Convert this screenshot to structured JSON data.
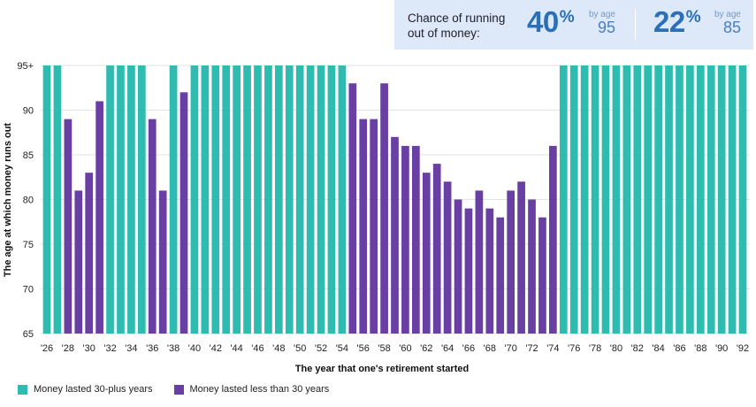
{
  "callout": {
    "label": "Chance of running out of money:",
    "stats": [
      {
        "value": "40",
        "unit": "%",
        "by": "by age",
        "age": "95"
      },
      {
        "value": "22",
        "unit": "%",
        "by": "by age",
        "age": "85"
      }
    ]
  },
  "legend": {
    "items": [
      {
        "label": "Money lasted 30-plus years",
        "color": "#2ebcb0"
      },
      {
        "label": "Money lasted less than 30 years",
        "color": "#6a3fa3"
      }
    ]
  },
  "chart_data": {
    "type": "bar",
    "ylabel": "The age at which money runs out",
    "xlabel": "The year that one's retirement started",
    "ylim": [
      65,
      95
    ],
    "yticks": [
      "65",
      "70",
      "75",
      "80",
      "85",
      "90",
      "95+"
    ],
    "colors": {
      "lasted": "#2ebcb0",
      "ran_out": "#6a3fa3"
    },
    "categories": [
      "1926",
      "1927",
      "1928",
      "1929",
      "1930",
      "1931",
      "1932",
      "1933",
      "1934",
      "1935",
      "1936",
      "1937",
      "1938",
      "1939",
      "1940",
      "1941",
      "1942",
      "1943",
      "1944",
      "1945",
      "1946",
      "1947",
      "1948",
      "1949",
      "1950",
      "1951",
      "1952",
      "1953",
      "1954",
      "1955",
      "1956",
      "1957",
      "1958",
      "1959",
      "1960",
      "1961",
      "1962",
      "1963",
      "1964",
      "1965",
      "1966",
      "1967",
      "1968",
      "1969",
      "1970",
      "1971",
      "1972",
      "1973",
      "1974",
      "1975",
      "1976",
      "1977",
      "1978",
      "1979",
      "1980",
      "1981",
      "1982",
      "1983",
      "1984",
      "1985",
      "1986",
      "1987",
      "1988",
      "1989",
      "1990",
      "1991",
      "1992"
    ],
    "tick_labels": [
      "'26",
      "'28",
      "'30",
      "'32",
      "'34",
      "'36",
      "'38",
      "'40",
      "'42",
      "'44",
      "'46",
      "'48",
      "'50",
      "'52",
      "'54",
      "'56",
      "'58",
      "'60",
      "'62",
      "'64",
      "'66",
      "'68",
      "'70",
      "'72",
      "'74",
      "'76",
      "'78",
      "'80",
      "'82",
      "'84",
      "'86",
      "'88",
      "'90",
      "'92"
    ],
    "values": [
      95,
      95,
      89,
      81,
      83,
      91,
      95,
      95,
      95,
      95,
      89,
      81,
      95,
      92,
      95,
      95,
      95,
      95,
      95,
      95,
      95,
      95,
      95,
      95,
      95,
      95,
      95,
      95,
      95,
      93,
      89,
      89,
      93,
      87,
      86,
      86,
      83,
      84,
      82,
      80,
      79,
      81,
      79,
      78,
      81,
      82,
      80,
      78,
      86,
      95,
      95,
      95,
      95,
      95,
      95,
      95,
      95,
      95,
      95,
      95,
      95,
      95,
      95,
      95,
      95,
      95,
      95
    ],
    "status": [
      "lasted",
      "lasted",
      "ran_out",
      "ran_out",
      "ran_out",
      "ran_out",
      "lasted",
      "lasted",
      "lasted",
      "lasted",
      "ran_out",
      "ran_out",
      "lasted",
      "ran_out",
      "lasted",
      "lasted",
      "lasted",
      "lasted",
      "lasted",
      "lasted",
      "lasted",
      "lasted",
      "lasted",
      "lasted",
      "lasted",
      "lasted",
      "lasted",
      "lasted",
      "lasted",
      "ran_out",
      "ran_out",
      "ran_out",
      "ran_out",
      "ran_out",
      "ran_out",
      "ran_out",
      "ran_out",
      "ran_out",
      "ran_out",
      "ran_out",
      "ran_out",
      "ran_out",
      "ran_out",
      "ran_out",
      "ran_out",
      "ran_out",
      "ran_out",
      "ran_out",
      "ran_out",
      "lasted",
      "lasted",
      "lasted",
      "lasted",
      "lasted",
      "lasted",
      "lasted",
      "lasted",
      "lasted",
      "lasted",
      "lasted",
      "lasted",
      "lasted",
      "lasted",
      "lasted",
      "lasted",
      "lasted",
      "lasted"
    ]
  }
}
